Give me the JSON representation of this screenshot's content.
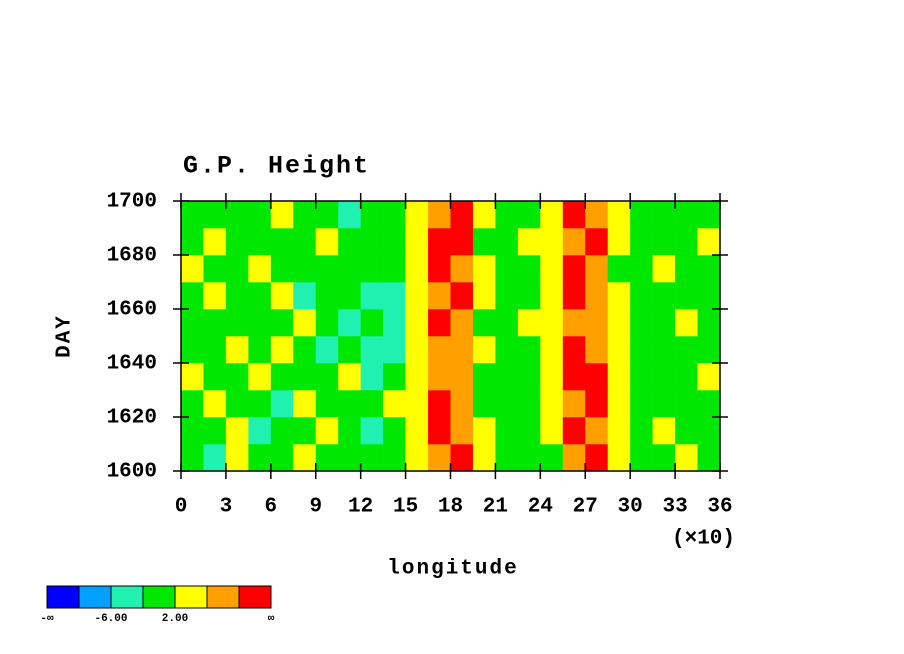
{
  "chart_data": {
    "type": "contour",
    "title": "G.P. Height",
    "x_label": "longitude",
    "y_label": "DAY",
    "x_multiplier": "(×10)",
    "xlim": [
      0,
      360
    ],
    "ylim": [
      1600,
      1700
    ],
    "xticks": [
      {
        "value": 0,
        "label": "0"
      },
      {
        "value": 30,
        "label": "3"
      },
      {
        "value": 60,
        "label": "6"
      },
      {
        "value": 90,
        "label": "9"
      },
      {
        "value": 120,
        "label": "12"
      },
      {
        "value": 150,
        "label": "15"
      },
      {
        "value": 180,
        "label": "18"
      },
      {
        "value": 210,
        "label": "21"
      },
      {
        "value": 240,
        "label": "24"
      },
      {
        "value": 270,
        "label": "27"
      },
      {
        "value": 300,
        "label": "30"
      },
      {
        "value": 330,
        "label": "33"
      },
      {
        "value": 360,
        "label": "36"
      }
    ],
    "yticks": [
      1600,
      1620,
      1640,
      1660,
      1680,
      1700
    ],
    "x": [
      7.5,
      22.5,
      37.5,
      52.5,
      67.5,
      82.5,
      97.5,
      112.5,
      127.5,
      142.5,
      157.5,
      172.5,
      187.5,
      202.5,
      217.5,
      232.5,
      247.5,
      262.5,
      277.5,
      292.5,
      307.5,
      322.5,
      337.5,
      352.5
    ],
    "y": [
      1605,
      1615,
      1625,
      1635,
      1645,
      1655,
      1665,
      1675,
      1685,
      1695
    ],
    "z": [
      [
        1,
        -3,
        2,
        0,
        -1,
        3,
        -2,
        0,
        1,
        -1,
        2,
        8,
        11,
        3,
        0,
        -2,
        1,
        9,
        12,
        4,
        1,
        -1,
        2,
        0
      ],
      [
        -2,
        0,
        3,
        -3,
        1,
        0,
        2,
        -1,
        -3,
        0,
        4,
        10,
        9,
        2,
        -1,
        0,
        3,
        11,
        8,
        3,
        0,
        2,
        -1,
        1
      ],
      [
        0,
        2,
        -1,
        1,
        -4,
        2,
        0,
        -2,
        -1,
        3,
        5,
        12,
        8,
        1,
        0,
        -1,
        2,
        8,
        10,
        2,
        -2,
        0,
        1,
        -1
      ],
      [
        3,
        -1,
        0,
        2,
        0,
        -2,
        1,
        3,
        -4,
        -1,
        2,
        7,
        9,
        0,
        -2,
        1,
        4,
        10,
        12,
        3,
        1,
        -1,
        0,
        2
      ],
      [
        -1,
        1,
        2,
        -2,
        3,
        0,
        -3,
        0,
        -3,
        -4,
        3,
        9,
        6,
        2,
        1,
        0,
        5,
        12,
        9,
        4,
        0,
        1,
        -2,
        0
      ],
      [
        1,
        -2,
        0,
        1,
        -1,
        2,
        0,
        -3,
        -2,
        -3,
        4,
        11,
        8,
        1,
        -1,
        2,
        3,
        9,
        7,
        2,
        -1,
        0,
        2,
        1
      ],
      [
        0,
        2,
        1,
        -1,
        2,
        -3,
        1,
        -2,
        -4,
        -3,
        2,
        8,
        10,
        3,
        0,
        -1,
        4,
        11,
        9,
        2,
        1,
        -2,
        0,
        -1
      ],
      [
        2,
        0,
        -2,
        3,
        0,
        1,
        -1,
        0,
        -2,
        1,
        5,
        12,
        9,
        2,
        -1,
        0,
        3,
        10,
        8,
        1,
        0,
        2,
        -1,
        0
      ],
      [
        -1,
        3,
        0,
        1,
        -2,
        0,
        2,
        -1,
        1,
        -1,
        3,
        10,
        11,
        1,
        0,
        2,
        2,
        9,
        10,
        3,
        -1,
        0,
        1,
        2
      ],
      [
        0,
        -2,
        1,
        0,
        2,
        -1,
        0,
        -3,
        -1,
        0,
        4,
        9,
        12,
        2,
        1,
        -1,
        3,
        12,
        9,
        2,
        0,
        1,
        -2,
        0
      ]
    ],
    "levels": [
      -10,
      -6,
      -2,
      2,
      6,
      10
    ],
    "colors": [
      "#0000ff",
      "#00a0ff",
      "#20f0b0",
      "#00e800",
      "#ffff00",
      "#ffa000",
      "#ff0000"
    ],
    "level_labels": [
      {
        "value": -6,
        "label": "-6.00"
      },
      {
        "value": 2,
        "label": "2.00"
      }
    ],
    "lower_end_label": "-∞",
    "upper_end_label": "∞"
  }
}
